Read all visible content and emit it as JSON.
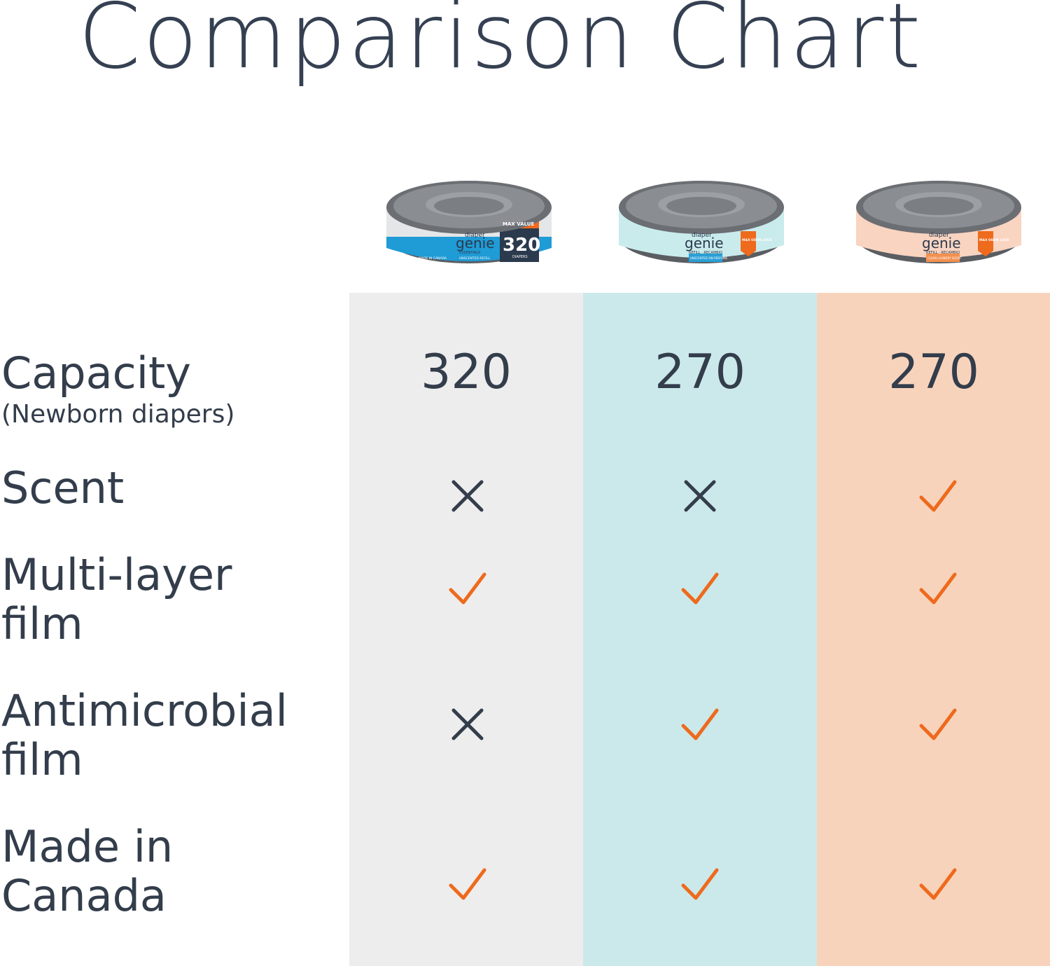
{
  "title": "Comparison Chart",
  "colors": {
    "check": "#ee6a1c",
    "cross": "#333d4b",
    "col_grey": "#ededed",
    "col_teal": "#cbe9ea",
    "col_peach": "#f8d3bc"
  },
  "products": [
    {
      "brand_small": "diaper",
      "brand": "genie",
      "sub": "ESSENTIALS",
      "badge": "MAX VALUE",
      "count": "320",
      "count_unit": "DIAPERS",
      "strip_left": "MADE IN CANADA",
      "strip_right": "UNSCENTED REFILL",
      "band_color": "#1f9bd6",
      "label_color": "#e4e6e8"
    },
    {
      "brand_small": "diaper",
      "brand": "genie",
      "sub": "REFILL · RECAMBIO",
      "badge": "MAX ODOR LOCK",
      "strip_right": "UNSCENTED SIN PERFUME",
      "band_color": "#2a9fd6",
      "label_color": "#c9ebec"
    },
    {
      "brand_small": "diaper",
      "brand": "genie",
      "sub": "REFILL · RECAMBIO",
      "badge": "MAX ODOR LOCK",
      "strip_right": "CLEAN LAUNDRY SCENT",
      "band_color": "#f3904f",
      "label_color": "#f9d4c1"
    }
  ],
  "rows": [
    {
      "label": "Capacity",
      "sublabel": "(Newborn diapers)",
      "values": [
        "320",
        "270",
        "270"
      ]
    },
    {
      "label": "Scent",
      "marks": [
        "cross",
        "cross",
        "check"
      ]
    },
    {
      "label": "Multi-layer film",
      "marks": [
        "check",
        "check",
        "check"
      ]
    },
    {
      "label": "Antimicrobial film",
      "marks": [
        "cross",
        "check",
        "check"
      ]
    },
    {
      "label": "Made in Canada",
      "marks": [
        "check",
        "check",
        "check"
      ]
    }
  ]
}
